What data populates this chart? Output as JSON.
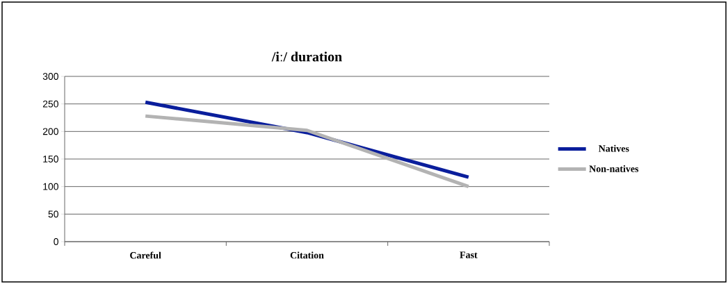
{
  "chart_data": {
    "type": "line",
    "title": "/iː/  duration",
    "categories": [
      "Careful",
      "Citation",
      "Fast"
    ],
    "series": [
      {
        "name": "Natives",
        "color": "#0a1e9c",
        "values": [
          253,
          198,
          117
        ]
      },
      {
        "name": "Non-natives",
        "color": "#b3b3b3",
        "values": [
          228,
          202,
          100
        ]
      }
    ],
    "ylim": [
      0,
      300
    ],
    "yticks": [
      0,
      50,
      100,
      150,
      200,
      250,
      300
    ],
    "grid": "y",
    "legend": "right",
    "marker": "none",
    "line_style": "solid"
  }
}
